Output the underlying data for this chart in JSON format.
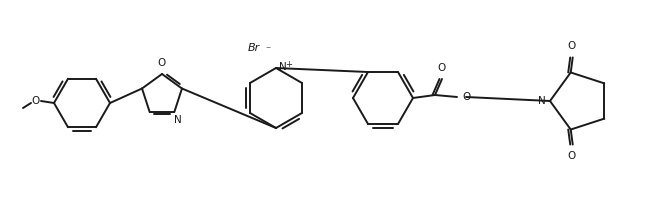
{
  "bg_color": "#ffffff",
  "line_color": "#1a1a1a",
  "line_width": 1.4,
  "figsize": [
    6.61,
    2.06
  ],
  "dpi": 100,
  "Br_label": "Br",
  "N_plus_label": "N",
  "O_label": "O",
  "N_label": "N"
}
